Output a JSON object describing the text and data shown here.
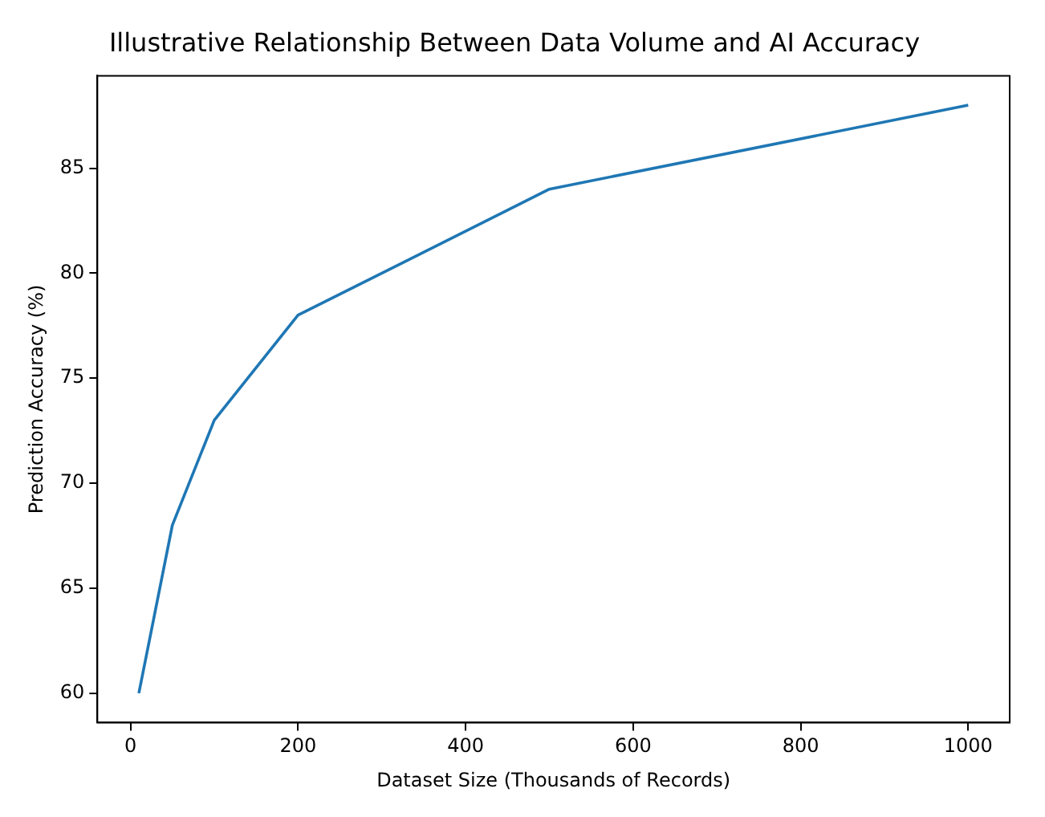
{
  "chart_data": {
    "type": "line",
    "title": "Illustrative Relationship Between Data Volume and AI Accuracy",
    "xlabel": "Dataset Size (Thousands of Records)",
    "ylabel": "Prediction Accuracy (%)",
    "x": [
      10,
      50,
      100,
      200,
      500,
      1000
    ],
    "series": [
      {
        "color": "#1f77b4",
        "values": [
          60,
          68,
          73,
          78,
          84,
          88
        ]
      }
    ],
    "xlim": [
      -39.5,
      1049.5
    ],
    "ylim": [
      58.6,
      89.4
    ],
    "xticks": [
      0,
      200,
      400,
      600,
      800,
      1000
    ],
    "yticks": [
      60,
      65,
      70,
      75,
      80,
      85
    ],
    "grid": false,
    "legend": false,
    "marker": "none",
    "line_style": "solid"
  }
}
